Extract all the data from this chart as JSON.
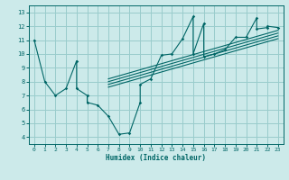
{
  "xlabel": "Humidex (Indice chaleur)",
  "bg_color": "#cceaea",
  "line_color": "#006666",
  "grid_color": "#99cccc",
  "xlim": [
    -0.5,
    23.5
  ],
  "ylim": [
    3.5,
    13.5
  ],
  "xticks": [
    0,
    1,
    2,
    3,
    4,
    5,
    6,
    7,
    8,
    9,
    10,
    11,
    12,
    13,
    14,
    15,
    16,
    17,
    18,
    19,
    20,
    21,
    22,
    23
  ],
  "yticks": [
    4,
    5,
    6,
    7,
    8,
    9,
    10,
    11,
    12,
    13
  ],
  "data_x": [
    0,
    1,
    2,
    3,
    4,
    4,
    5,
    5,
    6,
    7,
    8,
    9,
    10,
    10,
    11,
    12,
    13,
    14,
    15,
    15,
    16,
    16,
    17,
    18,
    19,
    20,
    21,
    21,
    22,
    22,
    23
  ],
  "data_y": [
    11,
    8,
    7,
    7.5,
    9.5,
    7.5,
    7,
    6.5,
    6.3,
    5.5,
    4.2,
    4.3,
    6.5,
    7.8,
    8.2,
    9.9,
    10,
    11.1,
    12.7,
    10.0,
    12.2,
    9.8,
    10.0,
    10.3,
    11.2,
    11.2,
    12.6,
    11.8,
    11.9,
    12.0,
    11.9
  ],
  "trend_lines": [
    {
      "x": [
        7,
        23
      ],
      "y": [
        7.6,
        11.1
      ]
    },
    {
      "x": [
        7,
        23
      ],
      "y": [
        7.8,
        11.3
      ]
    },
    {
      "x": [
        7,
        23
      ],
      "y": [
        8.0,
        11.5
      ]
    },
    {
      "x": [
        7,
        23
      ],
      "y": [
        8.2,
        11.7
      ]
    }
  ]
}
